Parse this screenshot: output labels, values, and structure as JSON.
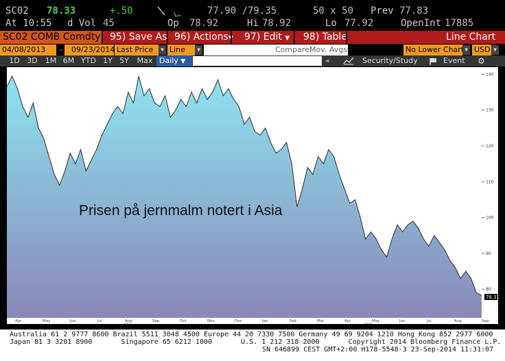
{
  "quote": {
    "ticker": "SC02",
    "last": "78.33",
    "change": "+.50",
    "range": "77.90 /79.35",
    "size": "50 x 50",
    "prev_label": "Prev",
    "prev": "77.83",
    "time": "At 10:55",
    "dvol_label": "d Vol",
    "dvol": "45",
    "op_label": "Op",
    "op": "78.92",
    "hi_label": "Hi",
    "hi": "78.92",
    "lo_label": "Lo",
    "lo": "77.92",
    "oi_label": "OpenInt",
    "oi": "17885"
  },
  "menu": {
    "security": "SC02 COMB Comdty",
    "save": "95) Save As",
    "actions": "96) Actions",
    "edit": "97) Edit",
    "table": "98) Table",
    "chart_type": "Line Chart"
  },
  "options": {
    "start_date": "04/08/2013",
    "dash": "-",
    "end_date": "09/23/2014",
    "field": "Last Price",
    "style": "Line",
    "compare": "Compare",
    "mov_avgs": "Mov. Avgs",
    "lower": "No Lower Chart",
    "currency": "USD"
  },
  "periods": [
    "1D",
    "3D",
    "1M",
    "6M",
    "YTD",
    "1Y",
    "5Y",
    "Max"
  ],
  "freq": "Daily",
  "tools": {
    "collapse": "«",
    "study": "Security/Study",
    "event": "Event"
  },
  "overlay_text": "Prisen på jernmalm notert i Asia",
  "chart_data": {
    "type": "area",
    "x_ticks": [
      "Apr",
      "May",
      "Jun",
      "Jul",
      "Aug",
      "Sep",
      "Oct",
      "Nov",
      "Dec",
      "Jan",
      "Feb",
      "Mar",
      "Apr",
      "May",
      "Jun",
      "Jul",
      "Aug",
      "Sep"
    ],
    "year_labels": [
      "2013",
      "2014"
    ],
    "y_ticks": [
      "80",
      "90",
      "100",
      "110",
      "120",
      "130",
      "140"
    ],
    "ylim": [
      72,
      142
    ],
    "last_value_tag": "78.33",
    "values": [
      136.5,
      139.5,
      136,
      131,
      128,
      132,
      125,
      122,
      117,
      112,
      109,
      113,
      118,
      115,
      119,
      113,
      116,
      119,
      123,
      126,
      129,
      131,
      129,
      135,
      132,
      139.5,
      134,
      136,
      132,
      131,
      134,
      128,
      130,
      133,
      131,
      135,
      132,
      136,
      133,
      135,
      138.5,
      134,
      136,
      133,
      131,
      126,
      128,
      124,
      123,
      125,
      121,
      118,
      119,
      121,
      115,
      103,
      108,
      114,
      112,
      117,
      115,
      119,
      117,
      112,
      108,
      104,
      105,
      100,
      94,
      96,
      94,
      91,
      89,
      94,
      98,
      96,
      98,
      99,
      97,
      94,
      92,
      95,
      93,
      91,
      88,
      86,
      83,
      85,
      83,
      79,
      78.3
    ],
    "line_color": "#2b2b2b",
    "fill_top": "#8ee3f0",
    "fill_bottom": "#8a88b8"
  },
  "footer": {
    "line1": "Australia 61 2 9777 8600 Brazil 5511 3048 4500 Europe 44 20 7330 7500 Germany 49 69 9204 1210 Hong Kong 852 2977 6000",
    "line2": "Japan 81 3 3201 8900       Singapore 65 6212 1000       U.S. 1 212 318 2000       Copyright 2014 Bloomberg Finance L.P.",
    "line3": "SN 646899 CEST GMT+2:00 H178-5548-3 23-Sep-2014 11:31:07"
  }
}
